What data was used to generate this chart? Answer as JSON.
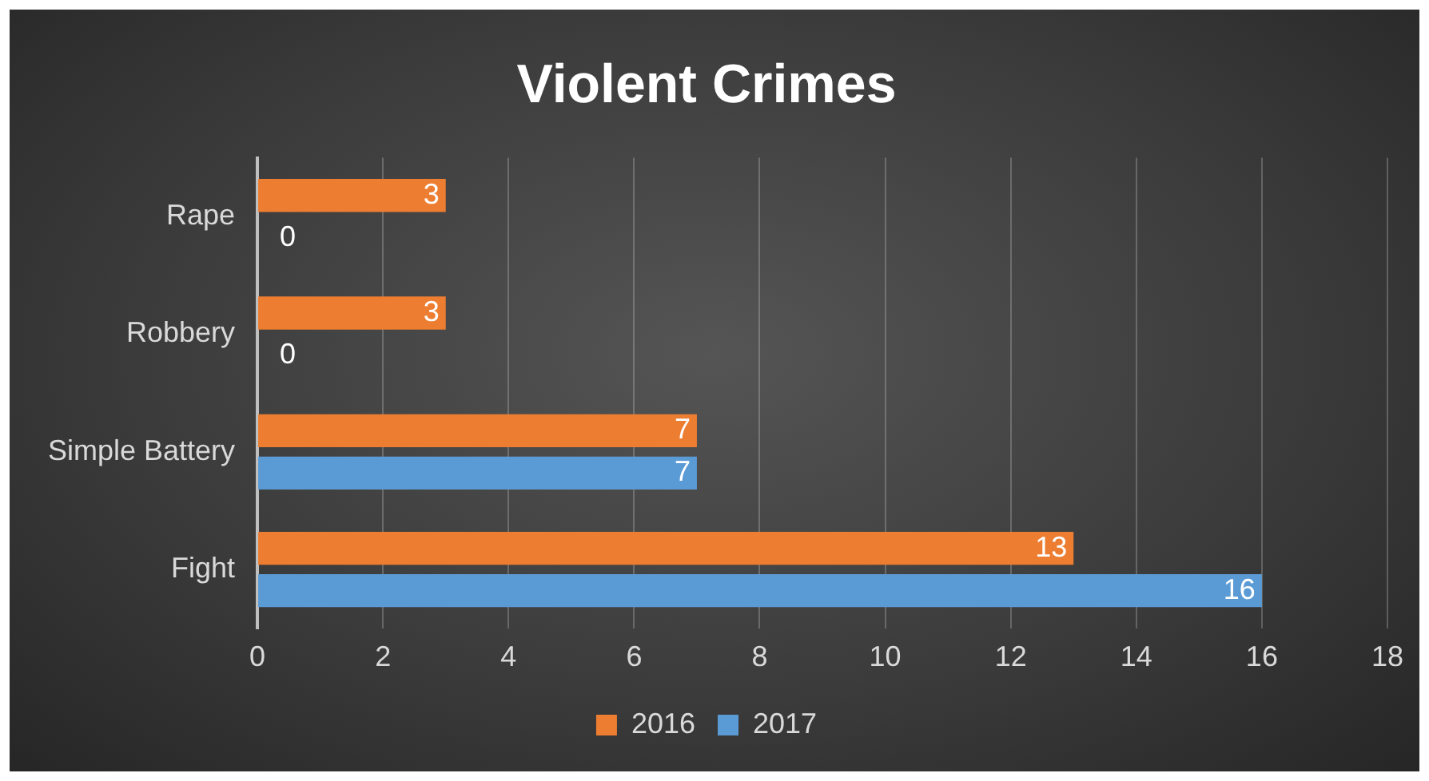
{
  "chart_data": {
    "type": "bar",
    "orientation": "horizontal",
    "title": "Violent Crimes",
    "categories": [
      "Rape",
      "Robbery",
      "Simple Battery",
      "Fight"
    ],
    "series": [
      {
        "name": "2016",
        "color": "#ed7d31",
        "values": [
          3,
          3,
          7,
          13
        ]
      },
      {
        "name": "2017",
        "color": "#5b9bd5",
        "values": [
          0,
          0,
          7,
          16
        ]
      }
    ],
    "xlim": [
      0,
      18
    ],
    "xticks": [
      0,
      2,
      4,
      6,
      8,
      10,
      12,
      14,
      16,
      18
    ],
    "grid": "x",
    "legend": "bottom",
    "data_labels": true
  }
}
